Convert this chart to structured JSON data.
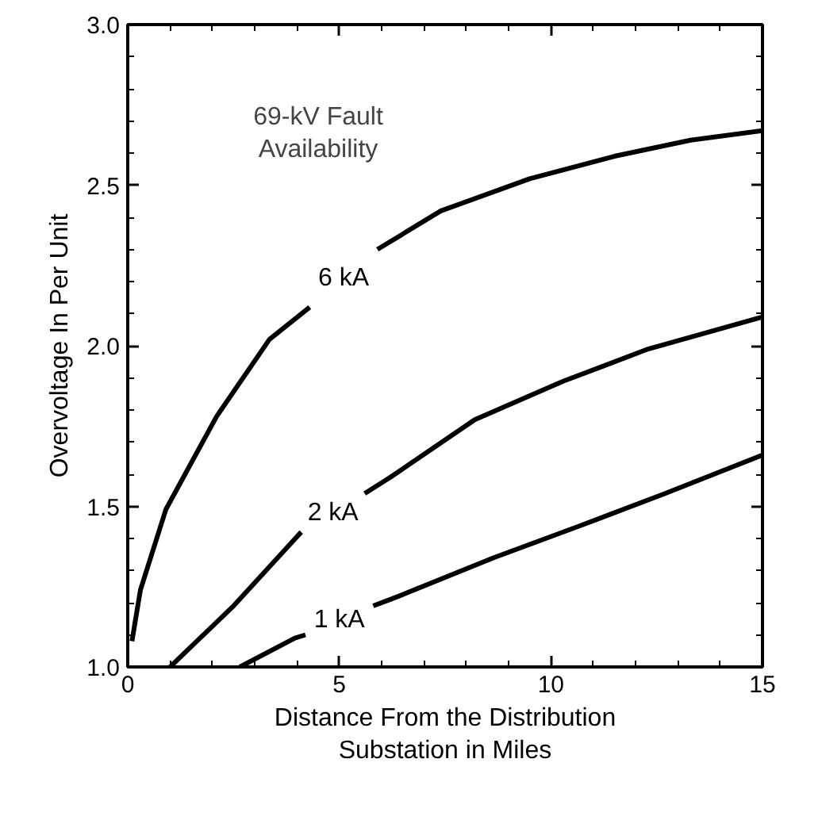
{
  "chart_data": {
    "type": "line",
    "xlabel": "Distance From the Distribution\nSubstation in Miles",
    "ylabel": "Overvoltage In Per Unit",
    "xlim": [
      0,
      15
    ],
    "xticks": [
      0,
      5,
      10,
      15
    ],
    "ylim": [
      1.0,
      3.0
    ],
    "yticks": [
      {
        "value": 1.0,
        "label": "1.0"
      },
      {
        "value": 1.5,
        "label": "1.5"
      },
      {
        "value": 2.0,
        "label": "2.0"
      },
      {
        "value": 2.5,
        "label": "2.5"
      },
      {
        "value": 3.0,
        "label": "3.0"
      }
    ],
    "grid": false,
    "line_style": "solid",
    "marker": "none",
    "series": [
      {
        "name": "6 kA",
        "color": "#000000",
        "x": [
          0.1,
          0.3,
          0.9,
          2.1,
          3.35,
          4.3,
          4.4,
          5.9,
          7.4,
          9.5,
          11.5,
          13.3,
          15
        ],
        "values": [
          1.08,
          1.24,
          1.49,
          1.78,
          2.02,
          2.12,
          null,
          2.3,
          2.42,
          2.52,
          2.59,
          2.64,
          2.67
        ]
      },
      {
        "name": "2 kA",
        "color": "#000000",
        "x": [
          1.0,
          2.5,
          3.75,
          4.1,
          4.2,
          5.6,
          6.2,
          8.2,
          10.3,
          12.3,
          15
        ],
        "values": [
          1.0,
          1.19,
          1.37,
          1.42,
          null,
          1.54,
          1.59,
          1.77,
          1.89,
          1.99,
          2.09
        ]
      },
      {
        "name": "1 kA",
        "color": "#000000",
        "x": [
          2.65,
          3.95,
          4.2,
          4.3,
          5.8,
          6.4,
          8.65,
          10.7,
          12.7,
          15
        ],
        "values": [
          1.0,
          1.09,
          1.1,
          null,
          1.19,
          1.22,
          1.34,
          1.44,
          1.54,
          1.66
        ]
      }
    ],
    "annotations": [
      "69-kV Fault\nAvailability"
    ]
  }
}
